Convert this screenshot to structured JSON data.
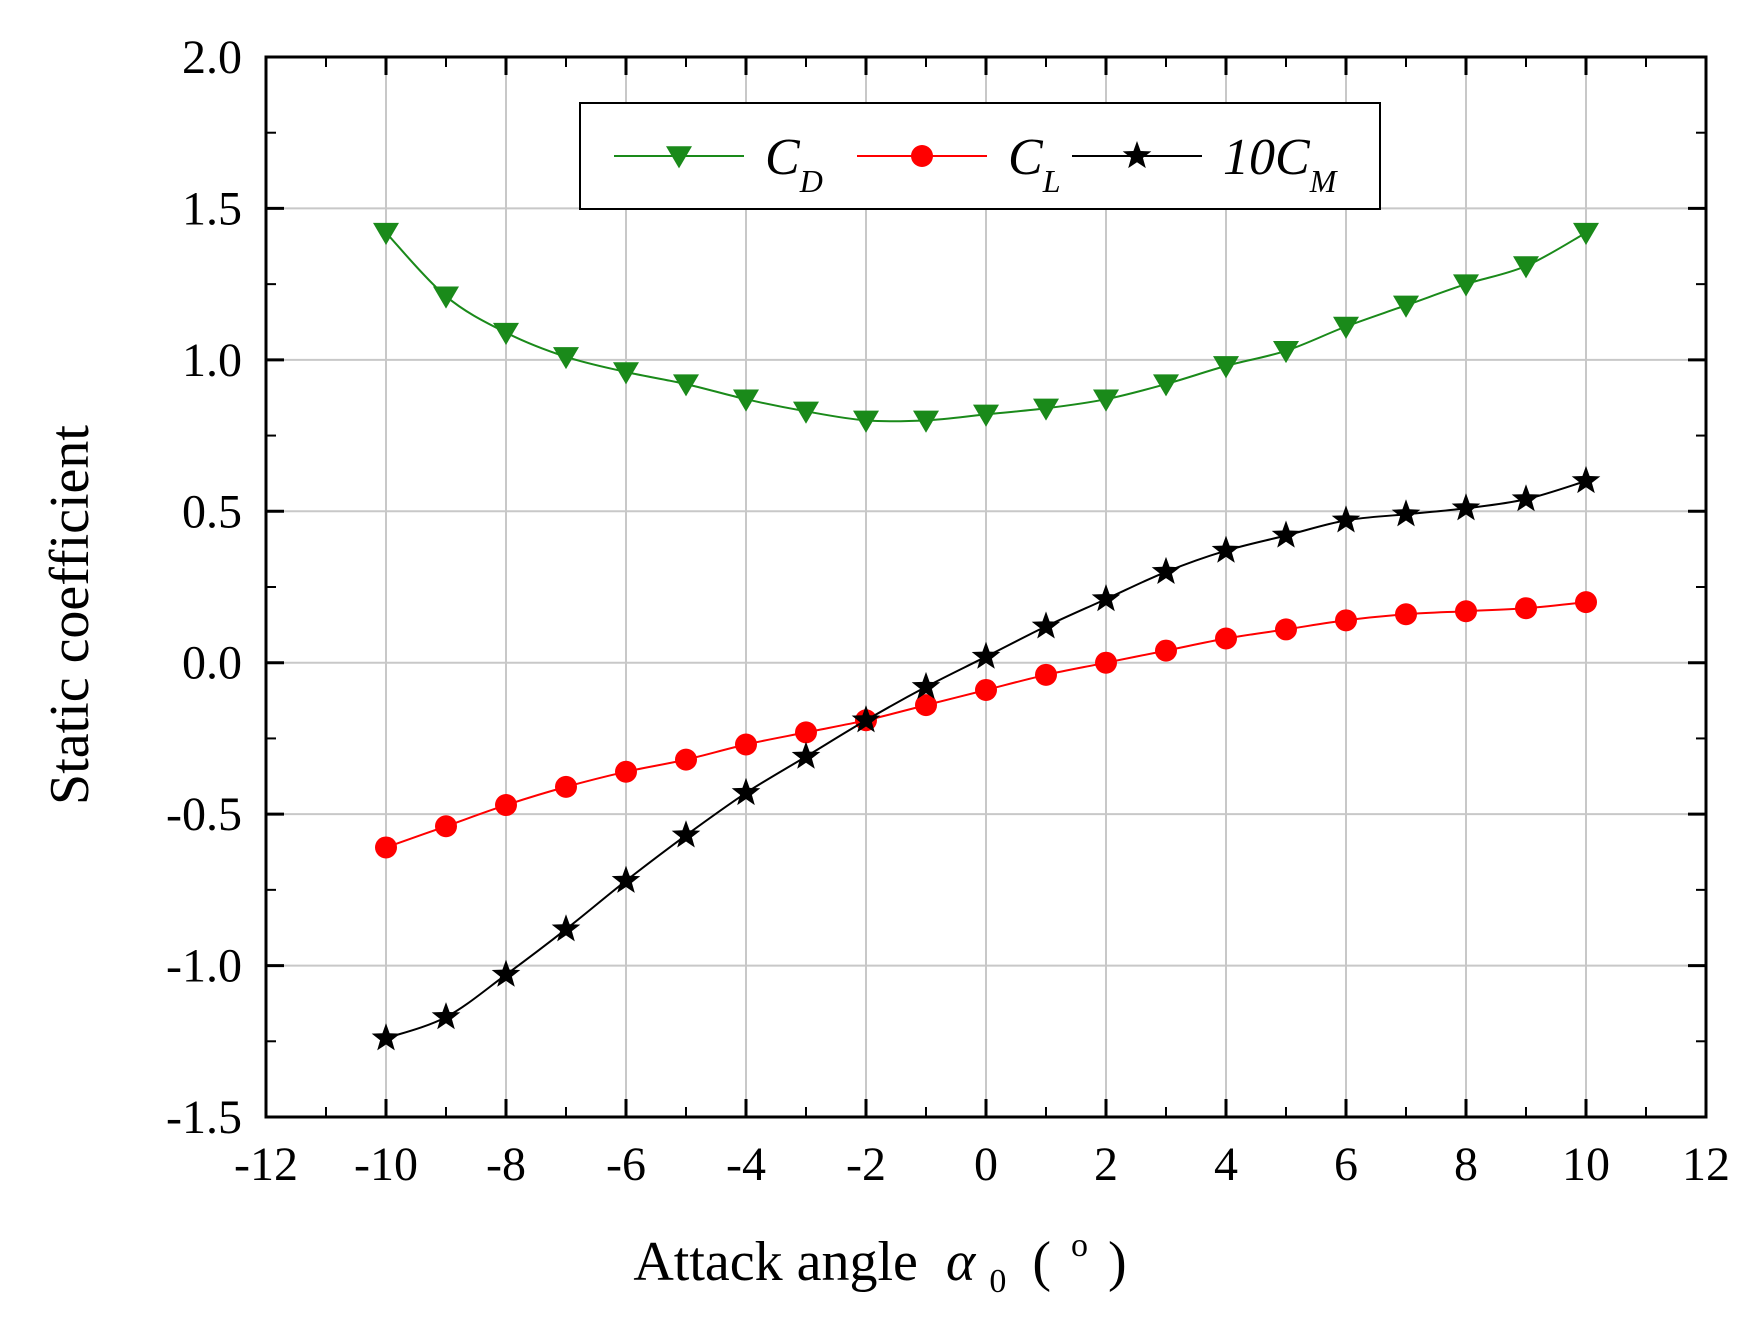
{
  "chart_data": {
    "type": "line",
    "xlabel_text": "Attack angle",
    "xlabel_symbol": "α",
    "xlabel_symbol_sub": "0",
    "xlabel_unit_open": "(",
    "xlabel_unit_sup": "o",
    "xlabel_unit_close": ")",
    "ylabel": "Static coefficient",
    "xlim": [
      -12,
      12
    ],
    "ylim": [
      -1.5,
      2.0
    ],
    "xticks": [
      -12,
      -10,
      -8,
      -6,
      -4,
      -2,
      0,
      2,
      4,
      6,
      8,
      10,
      12
    ],
    "yticks": [
      -1.5,
      -1.0,
      -0.5,
      0.0,
      0.5,
      1.0,
      1.5,
      2.0
    ],
    "ytick_labels": [
      "-1.5",
      "-1.0",
      "-0.5",
      "0.0",
      "0.5",
      "1.0",
      "1.5",
      "2.0"
    ],
    "xtick_labels": [
      "-12",
      "-10",
      "-8",
      "-6",
      "-4",
      "-2",
      "0",
      "2",
      "4",
      "6",
      "8",
      "10",
      "12"
    ],
    "grid": true,
    "legend_position": "top-center",
    "x": [
      -10,
      -9,
      -8,
      -7,
      -6,
      -5,
      -4,
      -3,
      -2,
      -1,
      0,
      1,
      2,
      3,
      4,
      5,
      6,
      7,
      8,
      9,
      10
    ],
    "series": [
      {
        "name": "C_D",
        "label_main": "C",
        "label_sub": "D",
        "color": "#1a8a1a",
        "marker": "triangle-down",
        "values": [
          1.42,
          1.21,
          1.09,
          1.01,
          0.96,
          0.92,
          0.87,
          0.83,
          0.8,
          0.8,
          0.82,
          0.84,
          0.87,
          0.92,
          0.98,
          1.03,
          1.11,
          1.18,
          1.25,
          1.31,
          1.42
        ]
      },
      {
        "name": "C_L",
        "label_main": "C",
        "label_sub": "L",
        "color": "#ff0000",
        "marker": "circle",
        "values": [
          -0.61,
          -0.54,
          -0.47,
          -0.41,
          -0.36,
          -0.32,
          -0.27,
          -0.23,
          -0.19,
          -0.14,
          -0.09,
          -0.04,
          0.0,
          0.04,
          0.08,
          0.11,
          0.14,
          0.16,
          0.17,
          0.18,
          0.2
        ]
      },
      {
        "name": "10C_M",
        "label_main": "10C",
        "label_sub": "M",
        "color": "#000000",
        "marker": "star",
        "values": [
          -1.24,
          -1.17,
          -1.03,
          -0.88,
          -0.72,
          -0.57,
          -0.43,
          -0.31,
          -0.19,
          -0.08,
          0.02,
          0.12,
          0.21,
          0.3,
          0.37,
          0.42,
          0.47,
          0.49,
          0.51,
          0.54,
          0.6
        ]
      }
    ]
  }
}
